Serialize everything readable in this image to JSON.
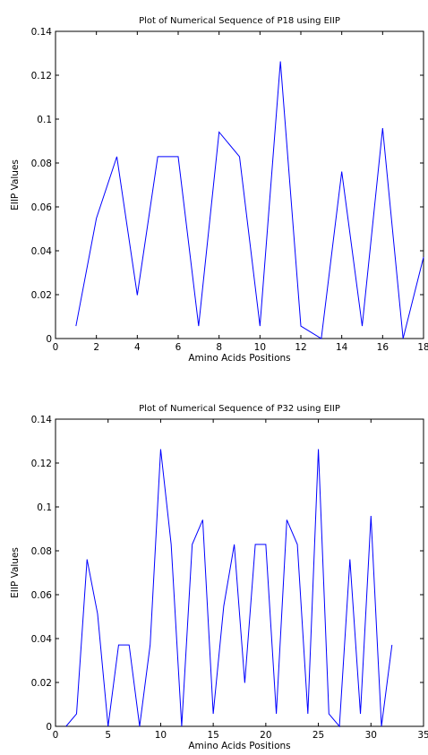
{
  "chart_data": [
    {
      "type": "line",
      "title": "Plot of Numerical Sequence of P18 using EIIP",
      "xlabel": "Amino Acids Positions",
      "ylabel": "EIIP Values",
      "xlim": [
        0,
        18
      ],
      "ylim": [
        0,
        0.14
      ],
      "xticks": [
        0,
        2,
        4,
        6,
        8,
        10,
        12,
        14,
        16,
        18
      ],
      "yticks": [
        0,
        0.02,
        0.04,
        0.06,
        0.08,
        0.1,
        0.12,
        0.14
      ],
      "grid": false,
      "line_color": "#0000ff",
      "x": [
        1,
        2,
        3,
        4,
        5,
        6,
        7,
        8,
        9,
        10,
        11,
        12,
        13,
        14,
        15,
        16,
        17,
        18
      ],
      "y": [
        0.0057,
        0.0548,
        0.0829,
        0.0198,
        0.0829,
        0.0829,
        0.0057,
        0.0941,
        0.0829,
        0.0057,
        0.1263,
        0.0057,
        0.0,
        0.0761,
        0.0057,
        0.0959,
        0.0,
        0.0371
      ]
    },
    {
      "type": "line",
      "title": "Plot of Numerical Sequence of P32 using EIIP",
      "xlabel": "Amino Acids Positions",
      "ylabel": "EIIP Values",
      "xlim": [
        0,
        35
      ],
      "ylim": [
        0,
        0.14
      ],
      "xticks": [
        0,
        5,
        10,
        15,
        20,
        25,
        30,
        35
      ],
      "yticks": [
        0,
        0.02,
        0.04,
        0.06,
        0.08,
        0.1,
        0.12,
        0.14
      ],
      "grid": false,
      "line_color": "#0000ff",
      "x": [
        1,
        2,
        3,
        4,
        5,
        6,
        7,
        8,
        9,
        10,
        11,
        12,
        13,
        14,
        15,
        16,
        17,
        18,
        19,
        20,
        21,
        22,
        23,
        24,
        25,
        26,
        27,
        28,
        29,
        30,
        31,
        32
      ],
      "y": [
        0.0,
        0.0057,
        0.0761,
        0.0513,
        0.0,
        0.0371,
        0.0371,
        0.0,
        0.0371,
        0.1263,
        0.0829,
        0.0,
        0.0829,
        0.0941,
        0.0057,
        0.0548,
        0.0829,
        0.0198,
        0.0829,
        0.0829,
        0.0057,
        0.0941,
        0.0829,
        0.0057,
        0.1263,
        0.0057,
        0.0,
        0.0761,
        0.0057,
        0.0959,
        0.0,
        0.0371
      ]
    }
  ]
}
